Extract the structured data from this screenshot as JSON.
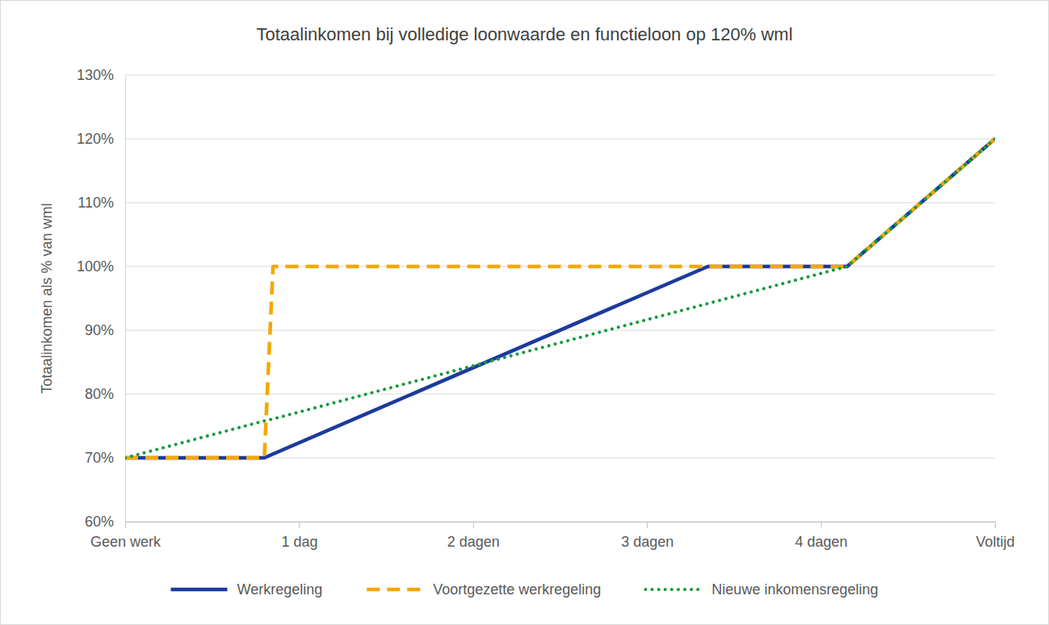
{
  "chart_data": {
    "type": "line",
    "title": "Totaalinkomen bij volledige loonwaarde en functieloon op 120% wml",
    "y_label": "Totaalinkomen als % van wml",
    "x": [
      0,
      0.8,
      0.85,
      3.35,
      4.15,
      5
    ],
    "xlim": [
      0,
      5
    ],
    "xticks": [
      {
        "value": 0,
        "label": "Geen werk"
      },
      {
        "value": 1,
        "label": "1 dag"
      },
      {
        "value": 2,
        "label": "2 dagen"
      },
      {
        "value": 3,
        "label": "3 dagen"
      },
      {
        "value": 4,
        "label": "4 dagen"
      },
      {
        "value": 5,
        "label": "Voltijd"
      }
    ],
    "ylim": [
      60,
      130
    ],
    "yticks": [
      {
        "value": 60,
        "label": "60%"
      },
      {
        "value": 70,
        "label": "70%"
      },
      {
        "value": 80,
        "label": "80%"
      },
      {
        "value": 90,
        "label": "90%"
      },
      {
        "value": 100,
        "label": "100%"
      },
      {
        "value": 110,
        "label": "110%"
      },
      {
        "value": 120,
        "label": "120%"
      },
      {
        "value": 130,
        "label": "130%"
      }
    ],
    "grid": true,
    "legend": "bottom",
    "series": [
      {
        "name": "Werkregeling",
        "color": "#1c3a9e",
        "line_style": "solid",
        "values": [
          70,
          70,
          70.6,
          100,
          100,
          120
        ]
      },
      {
        "name": "Voortgezette werkregeling",
        "color": "#f5a700",
        "line_style": "dashed",
        "values": [
          70,
          70,
          100,
          100,
          100,
          120
        ]
      },
      {
        "name": "Nieuwe inkomensregeling",
        "color": "#169b3a",
        "line_style": "dotted",
        "values": [
          70,
          75.8,
          76.1,
          94.2,
          100,
          120
        ]
      }
    ]
  }
}
